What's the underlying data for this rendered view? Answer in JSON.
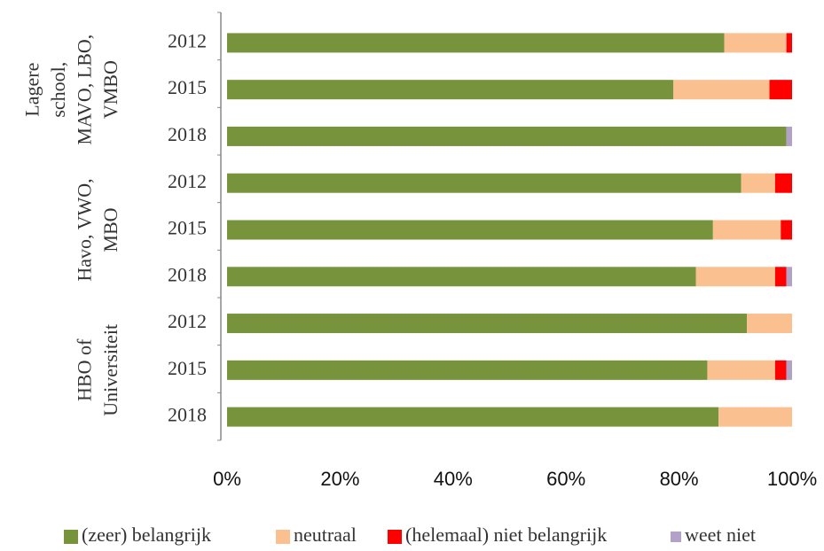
{
  "chart_data": {
    "type": "stacked-bar-horizontal",
    "group_labels": [
      [
        "Lagere",
        "school,",
        "MAVO, LBO,",
        "VMBO"
      ],
      [
        "Havo, VWO,",
        "MBO"
      ],
      [
        "HBO of",
        "Universiteit"
      ]
    ],
    "categories": [
      "2012",
      "2015",
      "2018",
      "2012",
      "2015",
      "2018",
      "2012",
      "2015",
      "2018"
    ],
    "series": [
      {
        "name": "(zeer) belangrijk",
        "color": "#77933c",
        "values": [
          88,
          79,
          99,
          91,
          86,
          83,
          92,
          85,
          87
        ]
      },
      {
        "name": "neutraal",
        "color": "#fac090",
        "values": [
          11,
          17,
          0,
          6,
          12,
          14,
          8,
          12,
          13
        ]
      },
      {
        "name": "(helemaal) niet belangrijk",
        "color": "#ff0000",
        "values": [
          1,
          4,
          0,
          3,
          2,
          2,
          0,
          2,
          0
        ]
      },
      {
        "name": "weet niet",
        "color": "#b3a2c7",
        "values": [
          0,
          0,
          1,
          0,
          0,
          1,
          0,
          1,
          0
        ]
      }
    ],
    "xlim": [
      0,
      100
    ],
    "xticks": [
      {
        "value": 0,
        "label": "0%"
      },
      {
        "value": 20,
        "label": "20%"
      },
      {
        "value": 40,
        "label": "40%"
      },
      {
        "value": 60,
        "label": "60%"
      },
      {
        "value": 80,
        "label": "80%"
      },
      {
        "value": 100,
        "label": "100%"
      }
    ],
    "legend": "bottom"
  }
}
